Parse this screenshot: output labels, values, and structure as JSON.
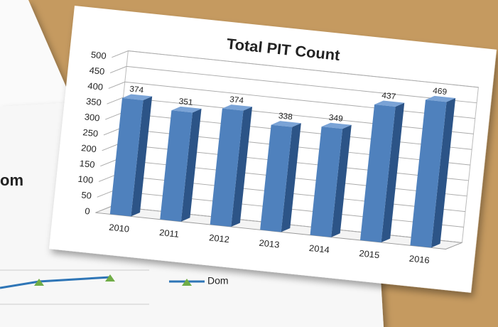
{
  "chart_data": {
    "type": "bar3d",
    "title": "Total PIT Count",
    "categories": [
      "2010",
      "2011",
      "2012",
      "2013",
      "2014",
      "2015",
      "2016"
    ],
    "values": [
      374,
      351,
      374,
      338,
      349,
      437,
      469
    ],
    "color": "#4f81bd",
    "side_color": "#2c5487",
    "ylim": [
      0,
      500
    ],
    "yticks": [
      0,
      50,
      100,
      150,
      200,
      250,
      300,
      350,
      400,
      450,
      500
    ],
    "grid": true
  },
  "background_chart": {
    "title_fragment": "om",
    "legend_fragment": "Dom"
  }
}
